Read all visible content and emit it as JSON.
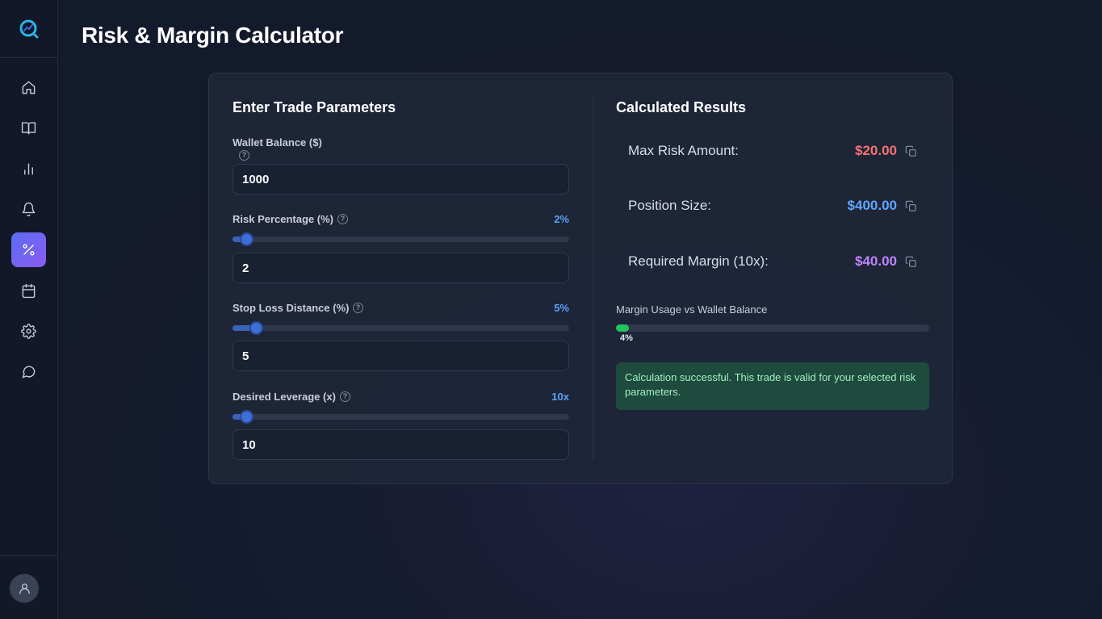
{
  "page": {
    "title": "Risk & Margin Calculator"
  },
  "sidebar": {
    "items": [
      {
        "icon": "home-icon"
      },
      {
        "icon": "book-icon"
      },
      {
        "icon": "bar-chart-icon"
      },
      {
        "icon": "bell-icon"
      },
      {
        "icon": "percent-icon",
        "active": true
      },
      {
        "icon": "calendar-icon"
      },
      {
        "icon": "gear-icon"
      },
      {
        "icon": "chat-icon"
      }
    ],
    "user_icon": "user-icon"
  },
  "inputs": {
    "title": "Enter Trade Parameters",
    "wallet": {
      "label": "Wallet Balance ($)",
      "value": "1000"
    },
    "risk": {
      "label": "Risk Percentage (%)",
      "tag": "2%",
      "value": "2",
      "slider_fraction": 0.04
    },
    "stop_loss": {
      "label": "Stop Loss Distance (%)",
      "tag": "5%",
      "value": "5",
      "slider_fraction": 0.07
    },
    "leverage": {
      "label": "Desired Leverage (x)",
      "tag": "10x",
      "value": "10",
      "slider_fraction": 0.04
    }
  },
  "results": {
    "title": "Calculated Results",
    "max_risk": {
      "label": "Max Risk Amount:",
      "value": "$20.00",
      "color": "#f87171"
    },
    "position_size": {
      "label": "Position Size:",
      "value": "$400.00",
      "color": "#60a5fa"
    },
    "required_margin": {
      "label": "Required Margin (10x):",
      "value": "$40.00",
      "color": "#c084fc"
    },
    "usage": {
      "label": "Margin Usage vs Wallet Balance",
      "percent_text": "4%",
      "fraction": 0.04
    },
    "message": "Calculation successful. This trade is valid for your selected risk parameters."
  },
  "colors": {
    "accent": "#5b6cf2",
    "success": "#22c55e"
  }
}
